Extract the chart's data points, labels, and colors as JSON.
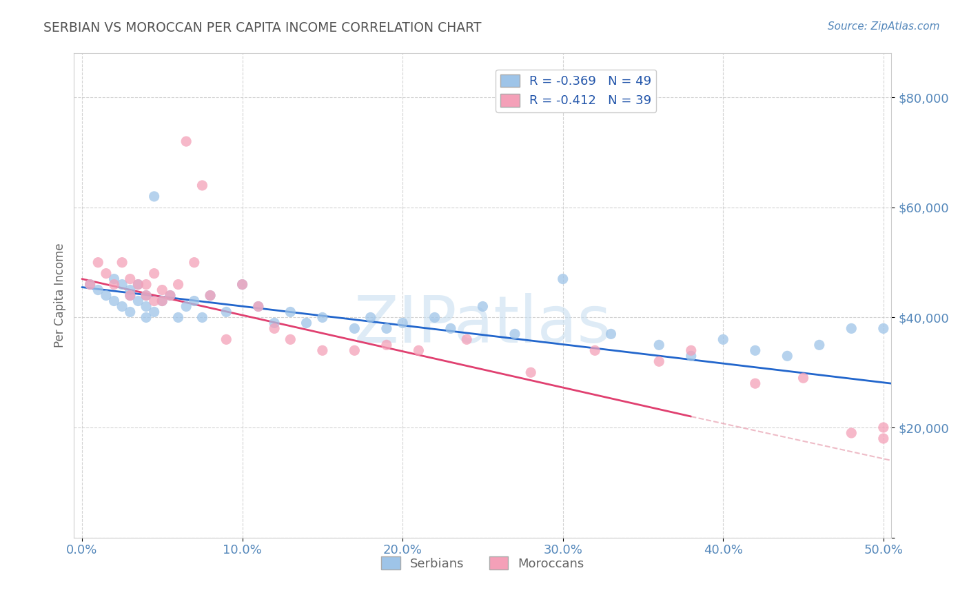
{
  "title": "SERBIAN VS MOROCCAN PER CAPITA INCOME CORRELATION CHART",
  "source_text": "Source: ZipAtlas.com",
  "ylabel": "Per Capita Income",
  "xlabel": "",
  "xlim": [
    -0.005,
    0.505
  ],
  "ylim": [
    0,
    88000
  ],
  "yticks": [
    0,
    20000,
    40000,
    60000,
    80000
  ],
  "ytick_labels": [
    "",
    "$20,000",
    "$40,000",
    "$60,000",
    "$80,000"
  ],
  "xticks": [
    0.0,
    0.1,
    0.2,
    0.3,
    0.4,
    0.5
  ],
  "xtick_labels": [
    "0.0%",
    "10.0%",
    "20.0%",
    "30.0%",
    "40.0%",
    "50.0%"
  ],
  "serbian_color": "#9ec4e8",
  "moroccan_color": "#f4a0b8",
  "trend_serbian_color": "#2266cc",
  "trend_moroccan_color": "#e04070",
  "trend_moroccan_dash_color": "#e8a0b0",
  "serbian_R": -0.369,
  "serbian_N": 49,
  "moroccan_R": -0.412,
  "moroccan_N": 39,
  "watermark": "ZIPatlas",
  "watermark_color": "#c8dff0",
  "background_color": "#ffffff",
  "grid_color": "#c8c8c8",
  "title_color": "#555555",
  "axis_label_color": "#666666",
  "tick_color": "#5588bb",
  "legend_label_color": "#2255aa",
  "serbian_x": [
    0.005,
    0.01,
    0.015,
    0.02,
    0.02,
    0.025,
    0.025,
    0.03,
    0.03,
    0.03,
    0.035,
    0.035,
    0.04,
    0.04,
    0.04,
    0.045,
    0.045,
    0.05,
    0.055,
    0.06,
    0.065,
    0.07,
    0.075,
    0.08,
    0.09,
    0.1,
    0.11,
    0.12,
    0.13,
    0.14,
    0.15,
    0.17,
    0.18,
    0.19,
    0.2,
    0.22,
    0.23,
    0.25,
    0.27,
    0.3,
    0.33,
    0.36,
    0.38,
    0.4,
    0.42,
    0.44,
    0.46,
    0.48,
    0.5
  ],
  "serbian_y": [
    46000,
    45000,
    44000,
    43000,
    47000,
    46000,
    42000,
    45000,
    44000,
    41000,
    46000,
    43000,
    44000,
    42000,
    40000,
    62000,
    41000,
    43000,
    44000,
    40000,
    42000,
    43000,
    40000,
    44000,
    41000,
    46000,
    42000,
    39000,
    41000,
    39000,
    40000,
    38000,
    40000,
    38000,
    39000,
    40000,
    38000,
    42000,
    37000,
    47000,
    37000,
    35000,
    33000,
    36000,
    34000,
    33000,
    35000,
    38000,
    38000
  ],
  "moroccan_x": [
    0.005,
    0.01,
    0.015,
    0.02,
    0.025,
    0.03,
    0.03,
    0.035,
    0.04,
    0.04,
    0.045,
    0.045,
    0.05,
    0.05,
    0.055,
    0.06,
    0.065,
    0.07,
    0.075,
    0.08,
    0.09,
    0.1,
    0.11,
    0.12,
    0.13,
    0.15,
    0.17,
    0.19,
    0.21,
    0.24,
    0.28,
    0.32,
    0.36,
    0.38,
    0.42,
    0.45,
    0.48,
    0.5,
    0.5
  ],
  "moroccan_y": [
    46000,
    50000,
    48000,
    46000,
    50000,
    47000,
    44000,
    46000,
    46000,
    44000,
    48000,
    43000,
    45000,
    43000,
    44000,
    46000,
    72000,
    50000,
    64000,
    44000,
    36000,
    46000,
    42000,
    38000,
    36000,
    34000,
    34000,
    35000,
    34000,
    36000,
    30000,
    34000,
    32000,
    34000,
    28000,
    29000,
    19000,
    20000,
    18000
  ],
  "trend_s_x0": 0.0,
  "trend_s_y0": 45500,
  "trend_s_x1": 0.505,
  "trend_s_y1": 28000,
  "trend_m_x0": 0.0,
  "trend_m_y0": 47000,
  "trend_m_x1": 0.38,
  "trend_m_y1": 22000,
  "trend_m_dash_x0": 0.38,
  "trend_m_dash_y0": 22000,
  "trend_m_dash_x1": 0.505,
  "trend_m_dash_y1": 14000
}
